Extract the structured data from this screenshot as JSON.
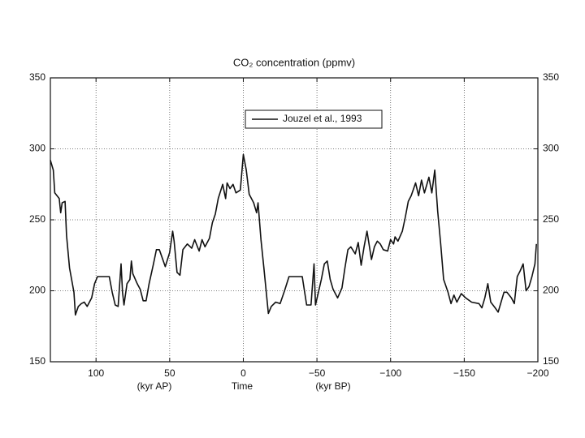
{
  "chart_data": {
    "type": "line",
    "title": "CO₂ concentration (ppmv)",
    "annotations": [
      "(kyr AP)",
      "Time",
      "(kyr BP)"
    ],
    "xlim": [
      131,
      -200
    ],
    "ylim": [
      150,
      350
    ],
    "xticks": [
      100,
      50,
      0,
      {
        "value": -50,
        "label": "−50"
      },
      {
        "value": -100,
        "label": "−100"
      },
      {
        "value": -150,
        "label": "−150"
      },
      {
        "value": -200,
        "label": "−200"
      }
    ],
    "yticks": [
      150,
      200,
      250,
      300,
      350
    ],
    "grid": true,
    "legend": "top",
    "x": [
      131,
      129,
      128,
      125,
      124,
      123,
      121,
      120,
      118,
      115,
      114,
      112,
      110,
      108,
      106,
      103,
      101,
      99,
      96,
      91,
      89,
      87,
      85,
      83,
      82,
      81,
      79,
      77,
      76,
      75,
      72,
      70,
      68,
      66,
      64,
      61,
      59,
      57,
      55,
      53,
      50,
      48,
      47,
      45,
      43,
      41,
      38,
      35,
      33,
      30,
      28,
      26,
      23,
      21,
      19,
      17,
      14,
      12,
      11,
      9,
      7,
      5,
      2,
      0,
      -2,
      -4,
      -7,
      -9,
      -10,
      -12,
      -14,
      -17,
      -19,
      -22,
      -25,
      -28,
      -31,
      -36,
      -40,
      -43,
      -46,
      -48,
      -49,
      -51,
      -53,
      -55,
      -57,
      -59,
      -61,
      -64,
      -67,
      -69,
      -71,
      -73,
      -76,
      -78,
      -80,
      -82,
      -84,
      -87,
      -89,
      -91,
      -93,
      -95,
      -98,
      -100,
      -102,
      -103,
      -105,
      -108,
      -110,
      -112,
      -114,
      -117,
      -119,
      -121,
      -123,
      -126,
      -128,
      -130,
      -132,
      -134,
      -136,
      -139,
      -141,
      -143,
      -145,
      -148,
      -151,
      -155,
      -160,
      -162,
      -164,
      -166,
      -168,
      -171,
      -173,
      -175,
      -177,
      -179,
      -182,
      -184,
      -186,
      -188,
      -190,
      -192,
      -194,
      -196,
      -198,
      -199
    ],
    "series": [
      {
        "name": "Jouzel et al., 1993",
        "color": "#111111",
        "values": [
          292,
          285,
          269,
          265,
          255,
          262,
          263,
          239,
          216,
          199,
          183,
          189,
          191,
          192,
          189,
          195,
          205,
          210,
          210,
          210,
          199,
          190,
          189,
          219,
          199,
          190,
          205,
          208,
          221,
          212,
          205,
          201,
          193,
          193,
          205,
          219,
          229,
          229,
          223,
          217,
          227,
          242,
          235,
          213,
          211,
          229,
          233,
          230,
          236,
          228,
          236,
          231,
          237,
          248,
          254,
          265,
          275,
          265,
          276,
          272,
          275,
          269,
          271,
          296,
          285,
          268,
          262,
          255,
          262,
          236,
          216,
          184,
          189,
          192,
          191,
          200,
          210,
          210,
          210,
          190,
          190,
          219,
          190,
          199,
          208,
          219,
          221,
          208,
          201,
          195,
          202,
          216,
          229,
          231,
          226,
          234,
          218,
          231,
          242,
          222,
          231,
          235,
          233,
          229,
          228,
          236,
          233,
          238,
          235,
          242,
          252,
          263,
          267,
          276,
          267,
          278,
          269,
          280,
          269,
          285,
          256,
          233,
          208,
          199,
          191,
          197,
          192,
          198,
          195,
          192,
          191,
          188,
          195,
          205,
          192,
          188,
          185,
          192,
          199,
          199,
          195,
          191,
          210,
          214,
          219,
          200,
          203,
          210,
          219,
          233
        ]
      }
    ]
  }
}
